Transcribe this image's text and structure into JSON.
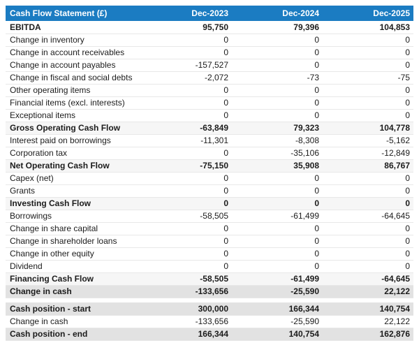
{
  "colors": {
    "header-bg": "#1b7cc2",
    "header-text": "#ffffff",
    "subtotal-bg": "#f6f6f6",
    "total-bg": "#e2e2e2",
    "row-border": "#e8e8e8"
  },
  "table": {
    "header": {
      "label": "Cash Flow Statement (£)",
      "columns": [
        "Dec-2023",
        "Dec-2024",
        "Dec-2025"
      ]
    },
    "rows": [
      {
        "label": "EBITDA",
        "values": [
          "95,750",
          "79,396",
          "104,853"
        ],
        "style": "bold"
      },
      {
        "label": "Change in inventory",
        "values": [
          "0",
          "0",
          "0"
        ],
        "style": "plain"
      },
      {
        "label": "Change in account receivables",
        "values": [
          "0",
          "0",
          "0"
        ],
        "style": "plain"
      },
      {
        "label": "Change in account payables",
        "values": [
          "-157,527",
          "0",
          "0"
        ],
        "style": "plain"
      },
      {
        "label": "Change in fiscal and social debts",
        "values": [
          "-2,072",
          "-73",
          "-75"
        ],
        "style": "plain"
      },
      {
        "label": "Other operating items",
        "values": [
          "0",
          "0",
          "0"
        ],
        "style": "plain"
      },
      {
        "label": "Financial items (excl. interests)",
        "values": [
          "0",
          "0",
          "0"
        ],
        "style": "plain"
      },
      {
        "label": "Exceptional items",
        "values": [
          "0",
          "0",
          "0"
        ],
        "style": "plain"
      },
      {
        "label": "Gross Operating Cash Flow",
        "values": [
          "-63,849",
          "79,323",
          "104,778"
        ],
        "style": "subtotal"
      },
      {
        "label": "Interest paid on borrowings",
        "values": [
          "-11,301",
          "-8,308",
          "-5,162"
        ],
        "style": "plain"
      },
      {
        "label": "Corporation tax",
        "values": [
          "0",
          "-35,106",
          "-12,849"
        ],
        "style": "plain"
      },
      {
        "label": "Net Operating Cash Flow",
        "values": [
          "-75,150",
          "35,908",
          "86,767"
        ],
        "style": "subtotal"
      },
      {
        "label": "Capex (net)",
        "values": [
          "0",
          "0",
          "0"
        ],
        "style": "plain"
      },
      {
        "label": "Grants",
        "values": [
          "0",
          "0",
          "0"
        ],
        "style": "plain"
      },
      {
        "label": "Investing Cash Flow",
        "values": [
          "0",
          "0",
          "0"
        ],
        "style": "subtotal"
      },
      {
        "label": "Borrowings",
        "values": [
          "-58,505",
          "-61,499",
          "-64,645"
        ],
        "style": "plain"
      },
      {
        "label": "Change in share capital",
        "values": [
          "0",
          "0",
          "0"
        ],
        "style": "plain"
      },
      {
        "label": "Change in shareholder loans",
        "values": [
          "0",
          "0",
          "0"
        ],
        "style": "plain"
      },
      {
        "label": "Change in other equity",
        "values": [
          "0",
          "0",
          "0"
        ],
        "style": "plain"
      },
      {
        "label": "Dividend",
        "values": [
          "0",
          "0",
          "0"
        ],
        "style": "plain"
      },
      {
        "label": "Financing Cash Flow",
        "values": [
          "-58,505",
          "-61,499",
          "-64,645"
        ],
        "style": "subtotal"
      },
      {
        "label": "Change in cash",
        "values": [
          "-133,656",
          "-25,590",
          "22,122"
        ],
        "style": "total"
      },
      {
        "spacer": true
      },
      {
        "label": "Cash position - start",
        "values": [
          "300,000",
          "166,344",
          "140,754"
        ],
        "style": "total"
      },
      {
        "label": "Change in cash",
        "values": [
          "-133,656",
          "-25,590",
          "22,122"
        ],
        "style": "plain"
      },
      {
        "label": "Cash position - end",
        "values": [
          "166,344",
          "140,754",
          "162,876"
        ],
        "style": "total"
      }
    ]
  }
}
